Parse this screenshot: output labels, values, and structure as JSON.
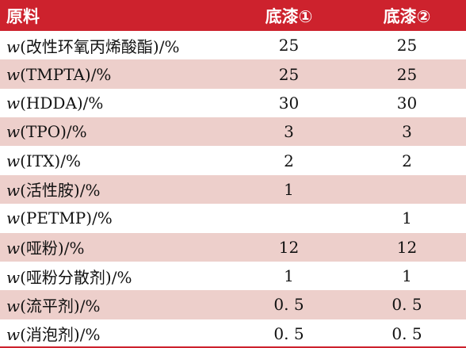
{
  "header": {
    "name": "原料",
    "col1": "底漆①",
    "col2": "底漆②"
  },
  "rows": [
    {
      "prefix": "w",
      "label": "(改性环氧丙烯酸酯)/%",
      "v1": "25",
      "v2": "25"
    },
    {
      "prefix": "w",
      "label": "(TMPTA)/%",
      "v1": "25",
      "v2": "25"
    },
    {
      "prefix": "w",
      "label": "(HDDA)/%",
      "v1": "30",
      "v2": "30"
    },
    {
      "prefix": "w",
      "label": "(TPO)/%",
      "v1": "3",
      "v2": "3"
    },
    {
      "prefix": "w",
      "label": "(ITX)/%",
      "v1": "2",
      "v2": "2"
    },
    {
      "prefix": "w",
      "label": "(活性胺)/%",
      "v1": "1",
      "v2": ""
    },
    {
      "prefix": "w",
      "label": "(PETMP)/%",
      "v1": "",
      "v2": "1"
    },
    {
      "prefix": "w",
      "label": "(哑粉)/%",
      "v1": "12",
      "v2": "12"
    },
    {
      "prefix": "w",
      "label": "(哑粉分散剂)/%",
      "v1": "1",
      "v2": "1"
    },
    {
      "prefix": "w",
      "label": "(流平剂)/%",
      "v1": "0. 5",
      "v2": "0. 5"
    },
    {
      "prefix": "w",
      "label": "(消泡剂)/%",
      "v1": "0. 5",
      "v2": "0. 5"
    }
  ],
  "colors": {
    "header_bg": "#cd222d",
    "stripe_bg": "#edcfcb"
  }
}
